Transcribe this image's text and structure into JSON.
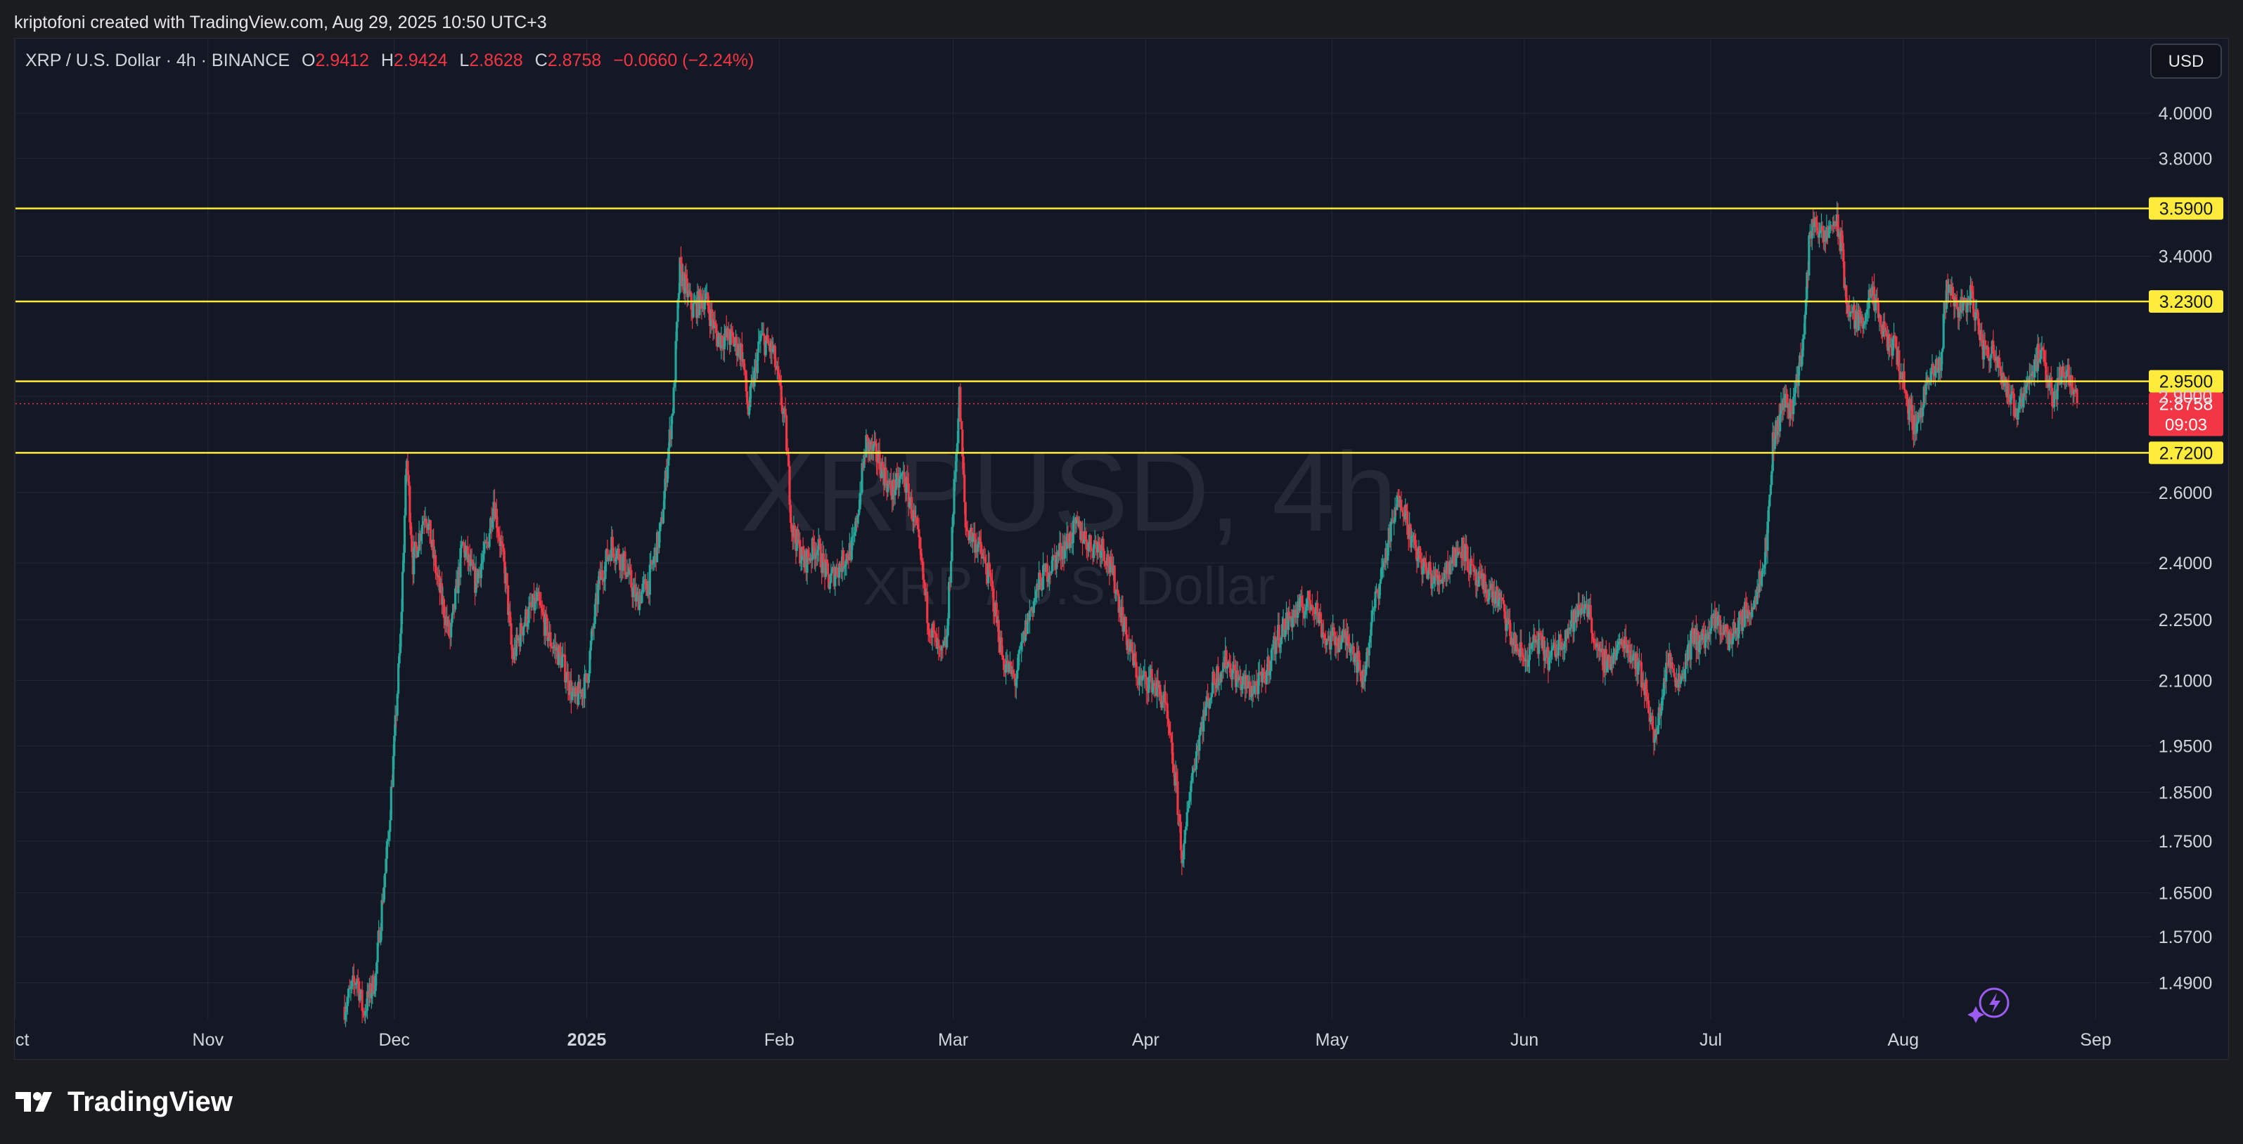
{
  "header": {
    "credit": "kriptofoni created with TradingView.com, Aug 29, 2025 10:50 UTC+3"
  },
  "legend": {
    "title": "XRP / U.S. Dollar · 4h · BINANCE",
    "o_label": "O",
    "o_value": "2.9412",
    "h_label": "H",
    "h_value": "2.9424",
    "l_label": "L",
    "l_value": "2.8628",
    "c_label": "C",
    "c_value": "2.8758",
    "change": "−0.0660 (−2.24%)"
  },
  "currency_button": "USD",
  "watermark": {
    "symbol": "XRPUSD, 4h",
    "name": "XRP / U.S. Dollar"
  },
  "footer": {
    "brand": "TradingView"
  },
  "colors": {
    "up": "#26a69a",
    "down": "#f23645",
    "level": "#ffeb3b",
    "background": "#141824",
    "grid": "#242834"
  },
  "chart_data": {
    "type": "candlestick",
    "symbol": "XRPUSD",
    "interval": "4h",
    "exchange": "BINANCE",
    "y_scale": "log",
    "ylim": [
      1.43,
      4.35
    ],
    "y_ticks": [
      "4.0000",
      "3.8000",
      "3.4000",
      "2.9000",
      "2.6000",
      "2.4000",
      "2.2500",
      "2.1000",
      "1.9500",
      "1.8500",
      "1.7500",
      "1.6500",
      "1.5700",
      "1.4900"
    ],
    "x_ticks": [
      "Oct",
      "Nov",
      "Dec",
      "2025",
      "Feb",
      "Mar",
      "Apr",
      "May",
      "Jun",
      "Jul",
      "Aug",
      "Sep"
    ],
    "x_range": [
      "2024-10-01",
      "2025-09-10"
    ],
    "grid": true,
    "price_levels": [
      {
        "label": "3.5900",
        "value": 3.59
      },
      {
        "label": "3.2300",
        "value": 3.23
      },
      {
        "label": "2.9500",
        "value": 2.95
      },
      {
        "label": "2.7200",
        "value": 2.72
      }
    ],
    "last_price": {
      "label": "2.8758",
      "value": 2.8758,
      "countdown": "09:03"
    },
    "close_path": [
      [
        "2024-11-23",
        1.45
      ],
      [
        "2024-11-25",
        1.5
      ],
      [
        "2024-11-26",
        1.44
      ],
      [
        "2024-11-28",
        1.5
      ],
      [
        "2024-11-30",
        1.75
      ],
      [
        "2024-12-01",
        1.95
      ],
      [
        "2024-12-02",
        2.2
      ],
      [
        "2024-12-03",
        2.7
      ],
      [
        "2024-12-04",
        2.4
      ],
      [
        "2024-12-06",
        2.55
      ],
      [
        "2024-12-08",
        2.35
      ],
      [
        "2024-12-10",
        2.2
      ],
      [
        "2024-12-12",
        2.45
      ],
      [
        "2024-12-14",
        2.35
      ],
      [
        "2024-12-16",
        2.45
      ],
      [
        "2024-12-17",
        2.58
      ],
      [
        "2024-12-19",
        2.35
      ],
      [
        "2024-12-20",
        2.15
      ],
      [
        "2024-12-22",
        2.25
      ],
      [
        "2024-12-24",
        2.3
      ],
      [
        "2024-12-26",
        2.2
      ],
      [
        "2024-12-28",
        2.15
      ],
      [
        "2024-12-30",
        2.05
      ],
      [
        "2025-01-01",
        2.1
      ],
      [
        "2025-01-03",
        2.35
      ],
      [
        "2025-01-05",
        2.45
      ],
      [
        "2025-01-07",
        2.4
      ],
      [
        "2025-01-09",
        2.3
      ],
      [
        "2025-01-11",
        2.35
      ],
      [
        "2025-01-13",
        2.5
      ],
      [
        "2025-01-15",
        2.9
      ],
      [
        "2025-01-16",
        3.35
      ],
      [
        "2025-01-18",
        3.2
      ],
      [
        "2025-01-20",
        3.25
      ],
      [
        "2025-01-22",
        3.1
      ],
      [
        "2025-01-24",
        3.1
      ],
      [
        "2025-01-26",
        3.05
      ],
      [
        "2025-01-27",
        2.85
      ],
      [
        "2025-01-29",
        3.1
      ],
      [
        "2025-01-31",
        3.05
      ],
      [
        "2025-02-02",
        2.8
      ],
      [
        "2025-02-03",
        2.5
      ],
      [
        "2025-02-05",
        2.4
      ],
      [
        "2025-02-07",
        2.45
      ],
      [
        "2025-02-09",
        2.35
      ],
      [
        "2025-02-11",
        2.4
      ],
      [
        "2025-02-13",
        2.45
      ],
      [
        "2025-02-15",
        2.75
      ],
      [
        "2025-02-17",
        2.7
      ],
      [
        "2025-02-19",
        2.6
      ],
      [
        "2025-02-21",
        2.65
      ],
      [
        "2025-02-23",
        2.5
      ],
      [
        "2025-02-25",
        2.25
      ],
      [
        "2025-02-27",
        2.15
      ],
      [
        "2025-02-28",
        2.2
      ],
      [
        "2025-03-02",
        2.9
      ],
      [
        "2025-03-03",
        2.5
      ],
      [
        "2025-03-05",
        2.45
      ],
      [
        "2025-03-07",
        2.35
      ],
      [
        "2025-03-09",
        2.15
      ],
      [
        "2025-03-11",
        2.1
      ],
      [
        "2025-03-13",
        2.25
      ],
      [
        "2025-03-15",
        2.35
      ],
      [
        "2025-03-17",
        2.4
      ],
      [
        "2025-03-19",
        2.45
      ],
      [
        "2025-03-21",
        2.5
      ],
      [
        "2025-03-23",
        2.45
      ],
      [
        "2025-03-25",
        2.45
      ],
      [
        "2025-03-27",
        2.35
      ],
      [
        "2025-03-29",
        2.2
      ],
      [
        "2025-03-31",
        2.1
      ],
      [
        "2025-04-02",
        2.1
      ],
      [
        "2025-04-04",
        2.05
      ],
      [
        "2025-04-06",
        1.85
      ],
      [
        "2025-04-07",
        1.7
      ],
      [
        "2025-04-08",
        1.85
      ],
      [
        "2025-04-10",
        2.0
      ],
      [
        "2025-04-12",
        2.1
      ],
      [
        "2025-04-14",
        2.15
      ],
      [
        "2025-04-16",
        2.1
      ],
      [
        "2025-04-18",
        2.08
      ],
      [
        "2025-04-20",
        2.1
      ],
      [
        "2025-04-22",
        2.2
      ],
      [
        "2025-04-24",
        2.25
      ],
      [
        "2025-04-26",
        2.28
      ],
      [
        "2025-04-28",
        2.3
      ],
      [
        "2025-04-30",
        2.2
      ],
      [
        "2025-05-02",
        2.2
      ],
      [
        "2025-05-04",
        2.2
      ],
      [
        "2025-05-06",
        2.1
      ],
      [
        "2025-05-08",
        2.3
      ],
      [
        "2025-05-10",
        2.45
      ],
      [
        "2025-05-12",
        2.6
      ],
      [
        "2025-05-14",
        2.45
      ],
      [
        "2025-05-16",
        2.38
      ],
      [
        "2025-05-18",
        2.35
      ],
      [
        "2025-05-20",
        2.4
      ],
      [
        "2025-05-22",
        2.45
      ],
      [
        "2025-05-24",
        2.35
      ],
      [
        "2025-05-26",
        2.33
      ],
      [
        "2025-05-28",
        2.3
      ],
      [
        "2025-05-30",
        2.2
      ],
      [
        "2025-06-01",
        2.15
      ],
      [
        "2025-06-03",
        2.2
      ],
      [
        "2025-06-05",
        2.15
      ],
      [
        "2025-06-07",
        2.2
      ],
      [
        "2025-06-09",
        2.25
      ],
      [
        "2025-06-11",
        2.3
      ],
      [
        "2025-06-13",
        2.15
      ],
      [
        "2025-06-15",
        2.15
      ],
      [
        "2025-06-17",
        2.2
      ],
      [
        "2025-06-19",
        2.15
      ],
      [
        "2025-06-21",
        2.05
      ],
      [
        "2025-06-22",
        1.95
      ],
      [
        "2025-06-24",
        2.15
      ],
      [
        "2025-06-26",
        2.1
      ],
      [
        "2025-06-28",
        2.2
      ],
      [
        "2025-06-30",
        2.2
      ],
      [
        "2025-07-02",
        2.25
      ],
      [
        "2025-07-04",
        2.2
      ],
      [
        "2025-07-06",
        2.25
      ],
      [
        "2025-07-08",
        2.3
      ],
      [
        "2025-07-10",
        2.45
      ],
      [
        "2025-07-11",
        2.75
      ],
      [
        "2025-07-13",
        2.9
      ],
      [
        "2025-07-14",
        2.85
      ],
      [
        "2025-07-16",
        3.1
      ],
      [
        "2025-07-17",
        3.5
      ],
      [
        "2025-07-18",
        3.55
      ],
      [
        "2025-07-19",
        3.45
      ],
      [
        "2025-07-21",
        3.55
      ],
      [
        "2025-07-22",
        3.45
      ],
      [
        "2025-07-23",
        3.2
      ],
      [
        "2025-07-25",
        3.15
      ],
      [
        "2025-07-27",
        3.25
      ],
      [
        "2025-07-29",
        3.1
      ],
      [
        "2025-07-31",
        3.05
      ],
      [
        "2025-08-02",
        2.85
      ],
      [
        "2025-08-03",
        2.8
      ],
      [
        "2025-08-05",
        2.95
      ],
      [
        "2025-08-07",
        3.0
      ],
      [
        "2025-08-08",
        3.3
      ],
      [
        "2025-08-10",
        3.2
      ],
      [
        "2025-08-12",
        3.25
      ],
      [
        "2025-08-14",
        3.05
      ],
      [
        "2025-08-16",
        3.05
      ],
      [
        "2025-08-18",
        2.9
      ],
      [
        "2025-08-19",
        2.85
      ],
      [
        "2025-08-21",
        2.95
      ],
      [
        "2025-08-23",
        3.05
      ],
      [
        "2025-08-25",
        2.9
      ],
      [
        "2025-08-27",
        3.0
      ],
      [
        "2025-08-28",
        2.96
      ],
      [
        "2025-08-29",
        2.8758
      ]
    ]
  }
}
